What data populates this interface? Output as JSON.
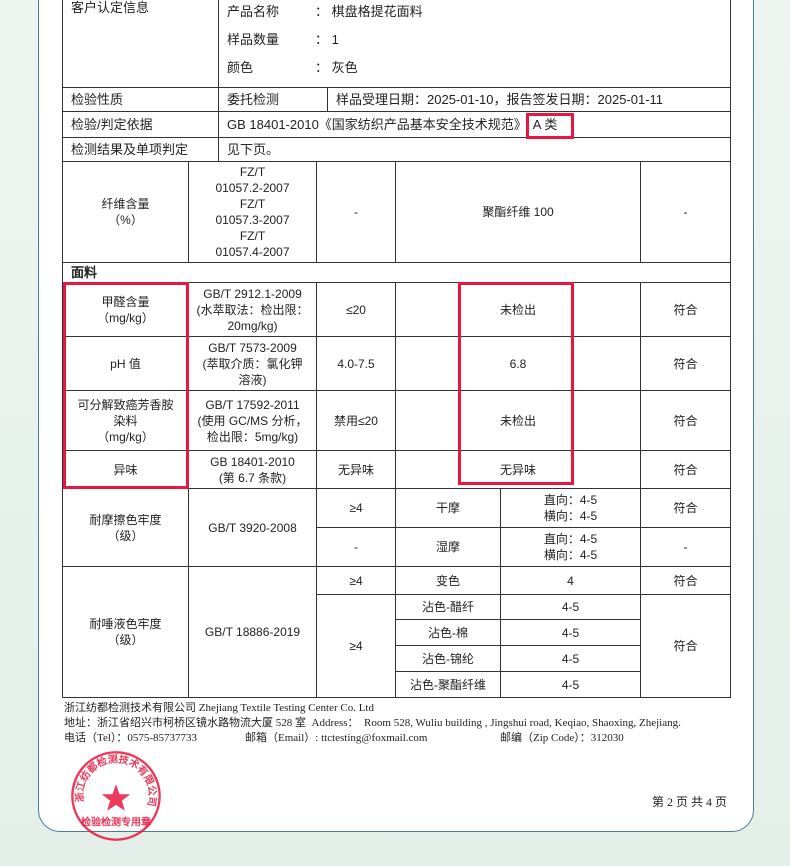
{
  "header": {
    "customer_label": "客户认定信息",
    "fields": [
      {
        "label": "产品名称",
        "value": "： 棋盘格提花面料"
      },
      {
        "label": "样品数量",
        "value": "： 1"
      },
      {
        "label": "颜色",
        "value": "： 灰色"
      }
    ],
    "nature_label": "检验性质",
    "nature_value": "委托检测",
    "dates": "样品受理日期：2025-01-10，报告签发日期：2025-01-11",
    "basis_label": "检验/判定依据",
    "basis_value": "GB 18401-2010《国家纺织产品基本安全技术规范》",
    "basis_class": "A 类",
    "result_label": "检测结果及单项判定",
    "result_value": "见下页。"
  },
  "fiber": {
    "item": "纤维含量\n（%）",
    "method": "FZ/T\n01057.2-2007\nFZ/T\n01057.3-2007\nFZ/T\n01057.4-2007",
    "spec": "-",
    "result": "聚酯纤维 100",
    "verdict": "-"
  },
  "section_label": "面料",
  "rows": [
    {
      "item": "甲醛含量\n（mg/kg）",
      "method": "GB/T 2912.1-2009\n(水萃取法：检出限：\n20mg/kg)",
      "spec": "≤20",
      "result": "未检出",
      "verdict": "符合"
    },
    {
      "item": "pH 值",
      "method": "GB/T 7573-2009\n(萃取介质：氯化钾\n溶液)",
      "spec": "4.0-7.5",
      "result": "6.8",
      "verdict": "符合"
    },
    {
      "item": "可分解致癌芳香胺\n染料\n（mg/kg）",
      "method": "GB/T 17592-2011\n(使用 GC/MS 分析，\n检出限：5mg/kg)",
      "spec": "禁用≤20",
      "result": "未检出",
      "verdict": "符合"
    },
    {
      "item": "异味",
      "method": "GB 18401-2010\n(第 6.7 条款)",
      "spec": "无异味",
      "result": "无异味",
      "verdict": "符合"
    }
  ],
  "rubbing": {
    "item": "耐摩擦色牢度\n（级）",
    "method": "GB/T 3920-2008",
    "sub": [
      {
        "spec": "≥4",
        "type": "干摩",
        "result": "直向：4-5\n横向：4-5",
        "verdict": "符合"
      },
      {
        "spec": "-",
        "type": "湿摩",
        "result": "直向：4-5\n横向：4-5",
        "verdict": "-"
      }
    ]
  },
  "saliva": {
    "item": "耐唾液色牢度\n（级）",
    "method": "GB/T 18886-2019",
    "change": {
      "spec": "≥4",
      "type": "变色",
      "result": "4",
      "verdict": "符合"
    },
    "stain_spec": "≥4",
    "stain_verdict": "符合",
    "stains": [
      {
        "type": "沾色-醋纤",
        "result": "4-5"
      },
      {
        "type": "沾色-棉",
        "result": "4-5"
      },
      {
        "type": "沾色-锦纶",
        "result": "4-5"
      },
      {
        "type": "沾色-聚酯纤维",
        "result": "4-5"
      }
    ]
  },
  "footer": {
    "company": "浙江纺都检测技术有限公司 Zhejiang Textile Testing Center Co. Ltd",
    "address": "地址：浙江省绍兴市柯桥区镜水路物流大厦 528 室  Address：  Room 528, Wuliu building , Jingshui road, Keqiao, Shaoxing, Zhejiang.",
    "tel": "电话（Tel）：0575-85737733",
    "email": "邮箱（Email）: ttctesting@foxmail.com",
    "zip": "邮编（Zip Code）：312030",
    "page": "第 2 页 共 4 页"
  },
  "stamp": {
    "ring_text": "浙江纺都检测技术有限公司",
    "center_text": "检验检测专用章",
    "color": "#e8173f"
  },
  "highlight_color": "#e8173f"
}
